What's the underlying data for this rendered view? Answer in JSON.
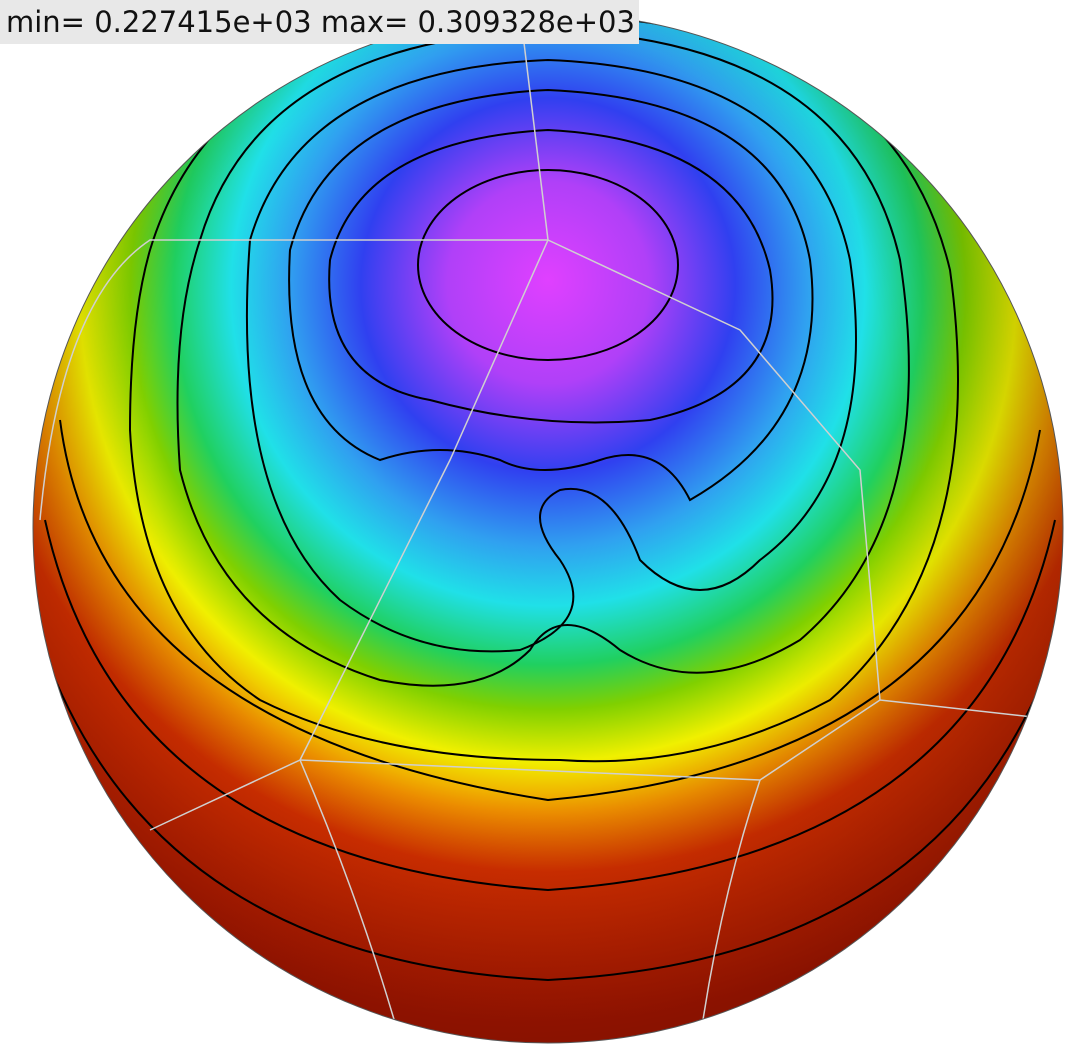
{
  "header": {
    "title": "min= 0.227415e+03 max= 0.309328e+03"
  }
}
